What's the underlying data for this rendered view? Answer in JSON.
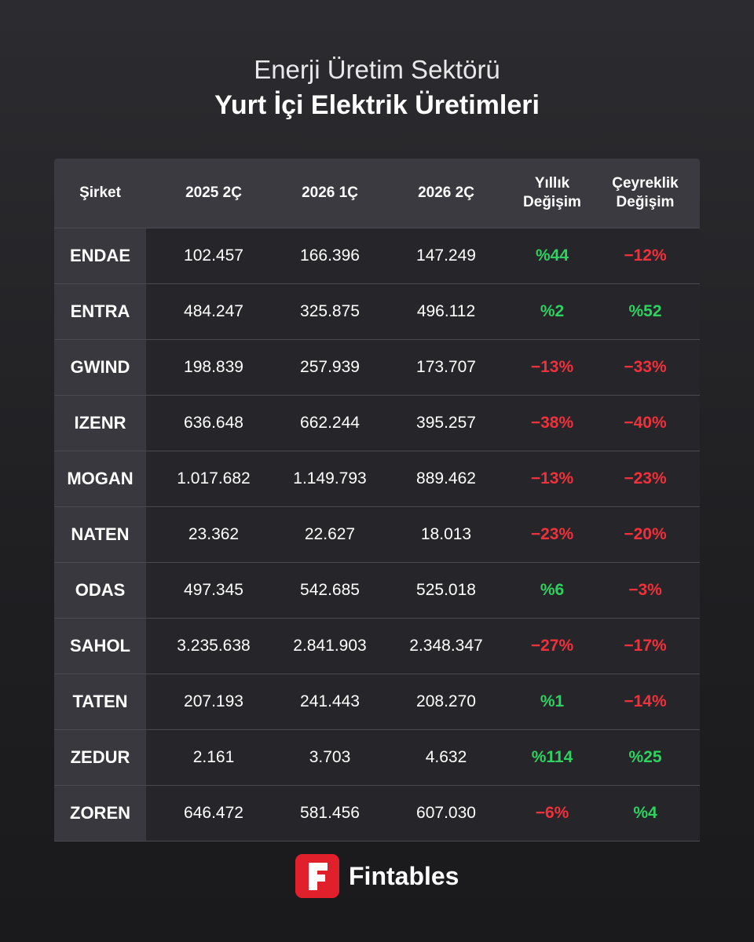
{
  "header": {
    "title": "Enerji Üretim Sektörü",
    "subtitle": "Yurt İçi Elektrik Üretimleri"
  },
  "table": {
    "columns": [
      "Şirket",
      "2025 2Ç",
      "2026 1Ç",
      "2026 2Ç",
      "Yıllık Değişim",
      "Çeyreklik Değişim"
    ],
    "rows": [
      [
        "ENDAE",
        "102.457",
        "166.396",
        "147.249",
        "%44",
        "−12%"
      ],
      [
        "ENTRA",
        "484.247",
        "325.875",
        "496.112",
        "%2",
        "%52"
      ],
      [
        "GWIND",
        "198.839",
        "257.939",
        "173.707",
        "−13%",
        "−33%"
      ],
      [
        "IZENR",
        "636.648",
        "662.244",
        "395.257",
        "−38%",
        "−40%"
      ],
      [
        "MOGAN",
        "1.017.682",
        "1.149.793",
        "889.462",
        "−13%",
        "−23%"
      ],
      [
        "NATEN",
        "23.362",
        "22.627",
        "18.013",
        "−23%",
        "−20%"
      ],
      [
        "ODAS",
        "497.345",
        "542.685",
        "525.018",
        "%6",
        "−3%"
      ],
      [
        "SAHOL",
        "3.235.638",
        "2.841.903",
        "2.348.347",
        "−27%",
        "−17%"
      ],
      [
        "TATEN",
        "207.193",
        "241.443",
        "208.270",
        "%1",
        "−14%"
      ],
      [
        "ZEDUR",
        "2.161",
        "3.703",
        "4.632",
        "%114",
        "%25"
      ],
      [
        "ZOREN",
        "646.472",
        "581.456",
        "607.030",
        "−6%",
        "%4"
      ]
    ]
  },
  "brand": {
    "name": "Fintables"
  }
}
